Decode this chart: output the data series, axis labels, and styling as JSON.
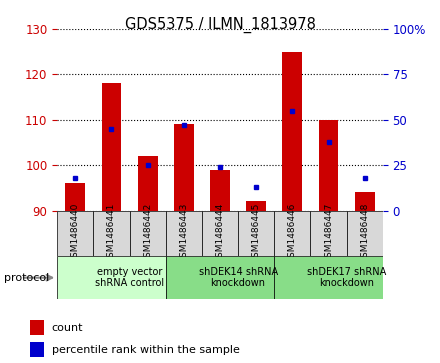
{
  "title": "GDS5375 / ILMN_1813978",
  "samples": [
    "GSM1486440",
    "GSM1486441",
    "GSM1486442",
    "GSM1486443",
    "GSM1486444",
    "GSM1486445",
    "GSM1486446",
    "GSM1486447",
    "GSM1486448"
  ],
  "count_values": [
    96,
    118,
    102,
    109,
    99,
    92,
    125,
    110,
    94
  ],
  "percentile_values": [
    18,
    45,
    25,
    47,
    24,
    13,
    55,
    38,
    18
  ],
  "ymin": 90,
  "ymax": 130,
  "yticks": [
    90,
    100,
    110,
    120,
    130
  ],
  "y2min": 0,
  "y2max": 100,
  "y2ticks": [
    0,
    25,
    50,
    75,
    100
  ],
  "ylabel_color": "#cc0000",
  "y2label_color": "#0000cc",
  "bar_color": "#cc0000",
  "dot_color": "#0000cc",
  "sample_box_color": "#d8d8d8",
  "plot_bg": "#ffffff",
  "protocol_groups": [
    {
      "label": "empty vector\nshRNA control",
      "start": 0,
      "end": 3,
      "color": "#ccffcc"
    },
    {
      "label": "shDEK14 shRNA\nknockdown",
      "start": 3,
      "end": 6,
      "color": "#88dd88"
    },
    {
      "label": "shDEK17 shRNA\nknockdown",
      "start": 6,
      "end": 9,
      "color": "#88dd88"
    }
  ],
  "legend_items": [
    {
      "label": "count",
      "color": "#cc0000"
    },
    {
      "label": "percentile rank within the sample",
      "color": "#0000cc"
    }
  ],
  "protocol_label": "protocol"
}
